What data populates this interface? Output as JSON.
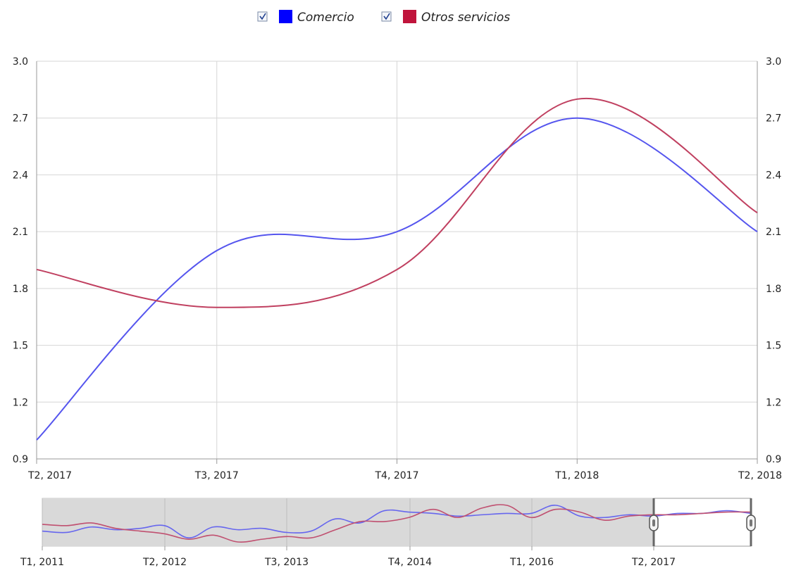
{
  "legend": {
    "items": [
      {
        "label": "Comercio",
        "color": "#0000ff",
        "checked": true
      },
      {
        "label": "Otros servicios",
        "color": "#c0143c",
        "checked": true
      }
    ]
  },
  "chart_data": {
    "type": "line",
    "categories": [
      "T2, 2017",
      "T3, 2017",
      "T4, 2017",
      "T1, 2018",
      "T2, 2018"
    ],
    "series": [
      {
        "name": "Comercio",
        "color": "#5555ee",
        "values": [
          1.0,
          2.0,
          2.1,
          2.7,
          2.1
        ]
      },
      {
        "name": "Otros servicios",
        "color": "#c04060",
        "values": [
          1.9,
          1.7,
          1.9,
          2.8,
          2.2
        ]
      }
    ],
    "ylim": [
      0.9,
      3.0
    ],
    "y_ticks": [
      "0.9",
      "1.2",
      "1.5",
      "1.8",
      "2.1",
      "2.4",
      "2.7",
      "3.0"
    ],
    "grid": true,
    "legend_position": "top-center",
    "navigator": {
      "tick_labels": [
        "T1, 2011",
        "T2, 2012",
        "T3, 2013",
        "T4, 2014",
        "T1, 2016",
        "T2, 2017"
      ],
      "selected_range": [
        "T2, 2017",
        "T2, 2018"
      ],
      "series": [
        {
          "name": "Comercio",
          "values": [
            1.4,
            1.3,
            1.7,
            1.5,
            1.6,
            1.8,
            0.9,
            1.7,
            1.5,
            1.6,
            1.3,
            1.4,
            2.3,
            2.0,
            2.9,
            2.8,
            2.7,
            2.5,
            2.6,
            2.7,
            2.7,
            3.3,
            2.5,
            2.4,
            2.6,
            2.5,
            2.7,
            2.7,
            2.9,
            2.7
          ]
        },
        {
          "name": "Otros servicios",
          "values": [
            1.9,
            1.8,
            2.0,
            1.6,
            1.4,
            1.2,
            0.8,
            1.1,
            0.6,
            0.8,
            1.0,
            0.9,
            1.5,
            2.1,
            2.1,
            2.4,
            3.0,
            2.4,
            3.1,
            3.3,
            2.4,
            3.0,
            2.8,
            2.2,
            2.5,
            2.6,
            2.6,
            2.7,
            2.8,
            2.8
          ]
        }
      ]
    }
  }
}
